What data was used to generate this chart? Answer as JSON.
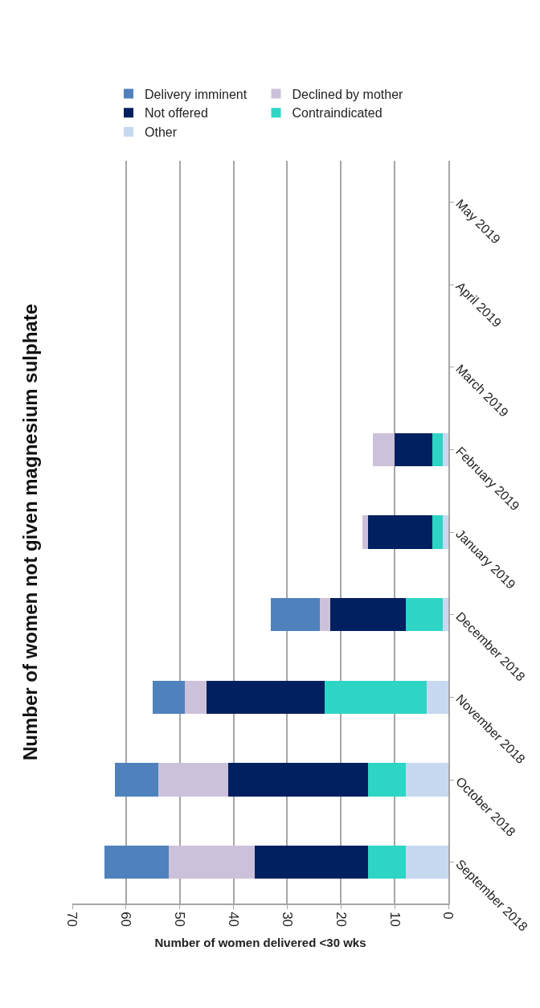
{
  "chart_data": {
    "type": "bar",
    "orientation": "horizontal",
    "stacked": true,
    "title": "Number of women not given magnesium sulphate",
    "xlabel": "Number of women delivered <30 wks",
    "categories": [
      "May 2019",
      "April 2019",
      "March 2019",
      "February 2019",
      "January 2019",
      "December 2018",
      "November 2018",
      "October 2018",
      "September 2018"
    ],
    "series": [
      {
        "name": "Other",
        "color": "#c6d9f0",
        "values": [
          0,
          0,
          0,
          1,
          1,
          1,
          4,
          8,
          8
        ]
      },
      {
        "name": "Contraindicated",
        "color": "#2ed5c4",
        "values": [
          0,
          0,
          0,
          2,
          2,
          7,
          19,
          7,
          7
        ]
      },
      {
        "name": "Not offered",
        "color": "#002060",
        "values": [
          0,
          0,
          0,
          7,
          12,
          14,
          22,
          26,
          21
        ]
      },
      {
        "name": "Declined by mother",
        "color": "#ccc1da",
        "values": [
          0,
          0,
          0,
          4,
          1,
          2,
          4,
          13,
          16
        ]
      },
      {
        "name": "Delivery imminent",
        "color": "#4f81bd",
        "values": [
          0,
          0,
          0,
          0,
          0,
          9,
          6,
          8,
          12
        ]
      }
    ],
    "xlim": [
      70,
      0
    ],
    "xticks": [
      70,
      60,
      50,
      40,
      30,
      20,
      10,
      0
    ],
    "grid": "x",
    "legend": "top"
  }
}
